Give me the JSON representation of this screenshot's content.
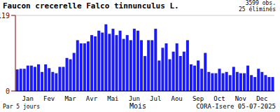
{
  "chart_data": {
    "type": "bar",
    "title": "Faucon crecerelle  Falco tinnunculus L.",
    "annotations": [
      "3599 obs.",
      "25 éliminés",
      "Par 5 jours",
      "CORA-Isere 05-07-2025"
    ],
    "x_label": "Mois",
    "categories": [
      null,
      null,
      null,
      "Jan",
      null,
      null,
      null,
      null,
      null,
      "Fev",
      null,
      null,
      null,
      null,
      null,
      "Mar",
      null,
      null,
      null,
      null,
      null,
      "Avr",
      null,
      null,
      null,
      null,
      null,
      "Mai",
      null,
      null,
      null,
      null,
      null,
      "Jun",
      null,
      null,
      null,
      null,
      null,
      "Jul",
      null,
      null,
      null,
      null,
      null,
      "Aou",
      null,
      null,
      null,
      null,
      null,
      "Sep",
      null,
      null,
      null,
      null,
      null,
      "Oct",
      null,
      null,
      null,
      null,
      null,
      "Nov",
      null,
      null,
      null,
      null,
      null,
      "Dec",
      null,
      null,
      null
    ],
    "values": [
      34,
      35,
      35,
      40,
      40,
      38,
      42,
      30,
      42,
      36,
      30,
      28,
      38,
      38,
      52,
      50,
      60,
      80,
      75,
      75,
      78,
      88,
      86,
      95,
      92,
      105,
      90,
      98,
      88,
      95,
      82,
      88,
      80,
      98,
      95,
      80,
      55,
      80,
      80,
      98,
      48,
      68,
      75,
      50,
      62,
      75,
      55,
      62,
      80,
      42,
      40,
      48,
      35,
      60,
      30,
      28,
      28,
      35,
      28,
      30,
      25,
      38,
      30,
      28,
      28,
      40,
      25,
      22,
      35,
      30,
      25,
      22,
      22
    ],
    "color": "#1a1aff",
    "ylim": [
      0,
      119
    ],
    "yticks": [
      0,
      119
    ],
    "grid": true
  }
}
